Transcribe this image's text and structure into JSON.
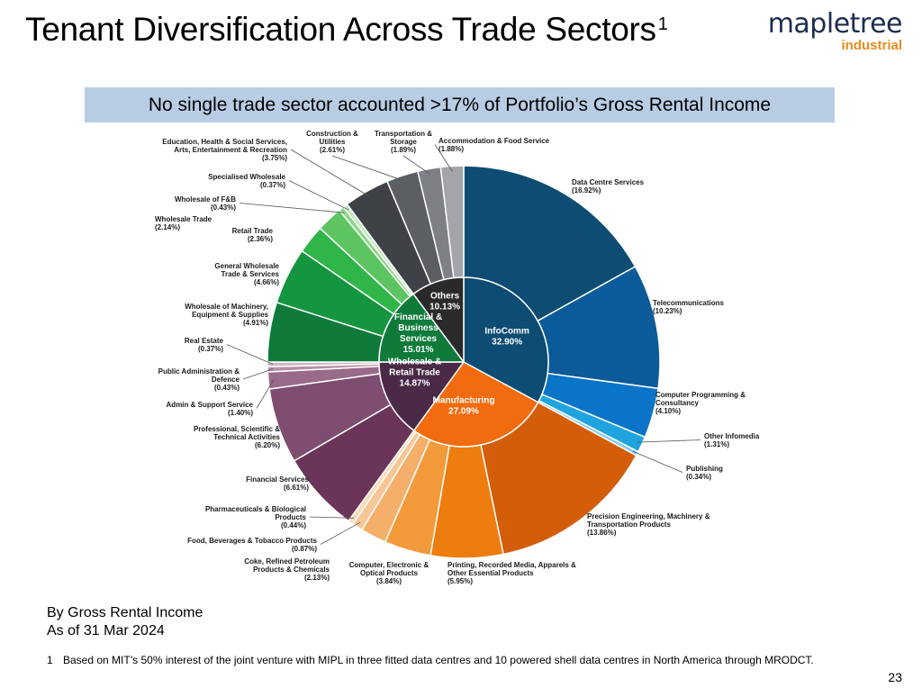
{
  "title": "Tenant Diversification Across Trade Sectors",
  "title_footnote_marker": "1",
  "logo": {
    "main": "mapletree",
    "sub": "industrial"
  },
  "banner": "No single trade sector accounted >17% of Portfolio’s Gross Rental Income",
  "chart_data": {
    "type": "pie",
    "subtype": "sunburst",
    "inner": [
      {
        "label": "InfoComm",
        "value": "32.90%",
        "pct": 32.9,
        "color": "#0d4c73"
      },
      {
        "label": "Manufacturing",
        "value": "27.09%",
        "pct": 27.09,
        "color": "#f26b0f"
      },
      {
        "label": "Financial & Business Services",
        "value": "15.01%",
        "pct": 15.01,
        "color": "#4a2a47"
      },
      {
        "label": "Wholesale & Retail Trade",
        "value": "14.87%",
        "pct": 14.87,
        "color": "#0f7a3a"
      },
      {
        "label": "Others",
        "value": "10.13%",
        "pct": 10.13,
        "color": "#2a2a2a"
      }
    ],
    "outer": [
      {
        "label": "Data Centre Services",
        "value": "(16.92%)",
        "pct": 16.92,
        "color": "#0d4c73"
      },
      {
        "label": "Telecommunications",
        "value": "(10.23%)",
        "pct": 10.23,
        "color": "#0b5b9a"
      },
      {
        "label": "Computer Programming & Consultancy",
        "value": "(4.10%)",
        "pct": 4.1,
        "color": "#0a74c8"
      },
      {
        "label": "Other Infomedia",
        "value": "(1.31%)",
        "pct": 1.31,
        "color": "#1fa4e0"
      },
      {
        "label": "Publishing",
        "value": "(0.34%)",
        "pct": 0.34,
        "color": "#85c9ee"
      },
      {
        "label": "Precision Engineering, Machinery & Transportation Products",
        "value": "(13.86%)",
        "pct": 13.86,
        "color": "#d45d0a"
      },
      {
        "label": "Printing, Recorded Media, Apparels & Other Essential Products",
        "value": "(5.95%)",
        "pct": 5.95,
        "color": "#ee7d0f"
      },
      {
        "label": "Computer, Electronic & Optical Products",
        "value": "(3.84%)",
        "pct": 3.84,
        "color": "#f39a3b"
      },
      {
        "label": "Coke, Refined Petroleum Products & Chemicals",
        "value": "(2.13%)",
        "pct": 2.13,
        "color": "#f6af6a"
      },
      {
        "label": "Food, Beverages & Tobacco Products",
        "value": "(0.87%)",
        "pct": 0.87,
        "color": "#f8c594"
      },
      {
        "label": "Pharmaceuticals & Biological Products",
        "value": "(0.44%)",
        "pct": 0.44,
        "color": "#fad9b7"
      },
      {
        "label": "Financial Services",
        "value": "(6.61%)",
        "pct": 6.61,
        "color": "#6a3559"
      },
      {
        "label": "Professional, Scientific & Technical Activities",
        "value": "(6.20%)",
        "pct": 6.2,
        "color": "#7e4d70"
      },
      {
        "label": "Admin & Support Service",
        "value": "(1.40%)",
        "pct": 1.4,
        "color": "#9a6a8a"
      },
      {
        "label": "Public Administration & Defence",
        "value": "(0.43%)",
        "pct": 0.43,
        "color": "#b68fa8"
      },
      {
        "label": "Real Estate",
        "value": "(0.37%)",
        "pct": 0.37,
        "color": "#d2b6c6"
      },
      {
        "label": "Wholesale of Machinery, Equipment & Supplies",
        "value": "(4.91%)",
        "pct": 4.91,
        "color": "#0f7a3a"
      },
      {
        "label": "General Wholesale Trade & Services",
        "value": "(4.66%)",
        "pct": 4.66,
        "color": "#14953f"
      },
      {
        "label": "Retail Trade",
        "value": "(2.36%)",
        "pct": 2.36,
        "color": "#2fb548"
      },
      {
        "label": "Wholesale Trade",
        "value": "(2.14%)",
        "pct": 2.14,
        "color": "#5cc561"
      },
      {
        "label": "Wholesale of F&B",
        "value": "(0.43%)",
        "pct": 0.43,
        "color": "#8fd68c"
      },
      {
        "label": "Specialised Wholesale",
        "value": "(0.37%)",
        "pct": 0.37,
        "color": "#c4e8bf"
      },
      {
        "label": "Education, Health & Social Services, Arts, Entertainment & Recreation",
        "value": "(3.75%)",
        "pct": 3.75,
        "color": "#3e4145"
      },
      {
        "label": "Construction & Utilities",
        "value": "(2.61%)",
        "pct": 2.61,
        "color": "#5b5f63"
      },
      {
        "label": "Transportation & Storage",
        "value": "(1.89%)",
        "pct": 1.89,
        "color": "#7d8185"
      },
      {
        "label": "Accommodation & Food Service",
        "value": "(1.88%)",
        "pct": 1.88,
        "color": "#a3a6a9"
      }
    ]
  },
  "meta": {
    "line1": "By Gross Rental Income",
    "line2": "As of 31 Mar 2024"
  },
  "footnote": {
    "number": "1",
    "text": "Based on MIT’s 50% interest of the joint venture with MIPL in three fitted data centres and 10 powered shell data centres in North America through MRODCT."
  },
  "page_number": "23"
}
